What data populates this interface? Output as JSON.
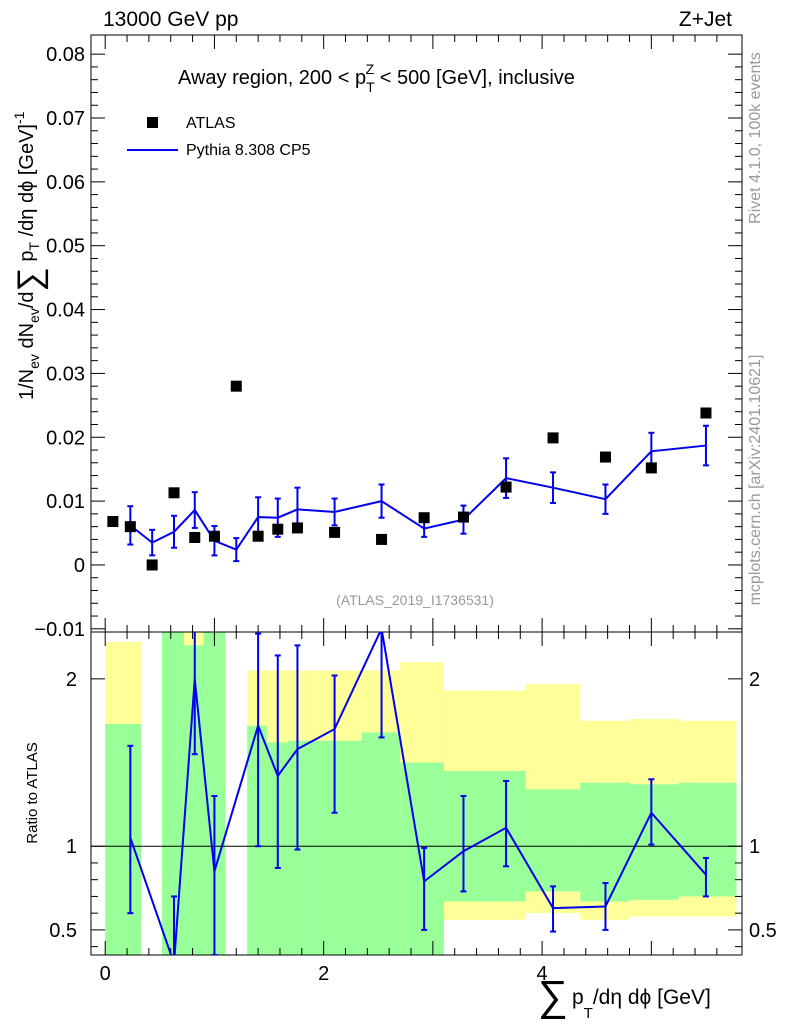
{
  "header": {
    "left": "13000 GeV pp",
    "right": "Z+Jet"
  },
  "side": {
    "rivet": "Rivet 4.1.0,  100k events",
    "mcplots": "mcplots.cern.ch [arXiv:2401.10621]"
  },
  "watermark": "(ATLAS_2019_I1736531)",
  "chart_data": {
    "type": "line",
    "title": "Away region, 200 < p_T^Z < 500 [GeV], inclusive",
    "title_parts": {
      "pre": "Away region, 200 < p",
      "sub": "T",
      "sup": "Z",
      "post": " < 500 [GeV], inclusive"
    },
    "xlabel": "∑ p_T/dη dϕ [GeV]",
    "xlabel_parts": {
      "sigma": "∑",
      "p": "p",
      "sub": "T",
      "rest": "/dη dϕ [GeV]"
    },
    "ylabel": "1/N_ev dN_ev/d∑ p_T/dη dϕ [GeV]^-1",
    "ylabel_parts": {
      "a": "1/N",
      "a_sub": "ev",
      "b": " dN",
      "b_sub": "ev",
      "c": "/d",
      "sigma": "∑",
      "d": " p",
      "d_sub": "T",
      "e": " /dη dϕ  [GeV]",
      "sup": "-1"
    },
    "xlim": [
      -0.13,
      5.83
    ],
    "ylim": [
      -0.0105,
      0.083
    ],
    "x_ticks": [
      0,
      2,
      4
    ],
    "x_tick_labels": [
      "0",
      "2",
      "4"
    ],
    "y_ticks": [
      -0.01,
      0,
      0.01,
      0.02,
      0.03,
      0.04,
      0.05,
      0.06,
      0.07,
      0.08
    ],
    "y_tick_labels": [
      "−0.01",
      "0",
      "0.01",
      "0.02",
      "0.03",
      "0.04",
      "0.05",
      "0.06",
      "0.07",
      "0.08"
    ],
    "legend": {
      "position": "top-left",
      "entries": [
        "ATLAS",
        "Pythia 8.308 CP5"
      ]
    },
    "series": [
      {
        "name": "ATLAS",
        "style": "markers",
        "color": "#000000",
        "x": [
          0.07,
          0.23,
          0.43,
          0.63,
          0.82,
          1.0,
          1.2,
          1.4,
          1.58,
          1.76,
          2.1,
          2.53,
          2.92,
          3.28,
          3.67,
          4.1,
          4.58,
          5.0,
          5.5
        ],
        "y": [
          0.0068,
          0.006,
          0.0,
          0.0113,
          0.0043,
          0.0045,
          0.028,
          0.0045,
          0.0056,
          0.0058,
          0.0051,
          0.004,
          0.0074,
          0.0075,
          0.0122,
          0.0199,
          0.0169,
          0.0152,
          0.0238
        ]
      },
      {
        "name": "Pythia 8.308 CP5",
        "style": "line",
        "color": "#0000ee",
        "x": [
          0.23,
          0.43,
          0.63,
          0.82,
          1.0,
          1.2,
          1.4,
          1.58,
          1.76,
          2.1,
          2.53,
          2.92,
          3.28,
          3.67,
          4.1,
          4.58,
          5.0,
          5.5
        ],
        "y": [
          0.0062,
          0.0035,
          0.0052,
          0.0086,
          0.0038,
          0.0024,
          0.0075,
          0.0074,
          0.0087,
          0.0083,
          0.01,
          0.0057,
          0.0071,
          0.0136,
          0.0121,
          0.0103,
          0.0178,
          0.0187
        ],
        "err": [
          0.003,
          0.002,
          0.0025,
          0.0028,
          0.0023,
          0.0018,
          0.0031,
          0.003,
          0.0034,
          0.0021,
          0.0026,
          0.0013,
          0.0022,
          0.0031,
          0.0024,
          0.0023,
          0.0029,
          0.0031
        ]
      }
    ],
    "ratio": {
      "ylabel": "Ratio to ATLAS",
      "ylim": [
        0.35,
        2.28
      ],
      "y_ticks": [
        0.5,
        1,
        2
      ],
      "y_tick_labels": [
        "0.5",
        "1",
        "2"
      ],
      "reference": 1,
      "bands": {
        "edges": [
          0,
          0.33,
          0.52,
          0.72,
          0.9,
          1.1,
          1.3,
          1.48,
          1.67,
          1.85,
          2.35,
          2.7,
          3.1,
          3.45,
          3.85,
          4.35,
          4.8,
          5.25,
          5.78
        ],
        "green_lo": [
          0.35,
          null,
          0.35,
          0.35,
          0.35,
          null,
          0.35,
          0.35,
          0.35,
          0.35,
          0.35,
          0.35,
          0.67,
          0.67,
          0.73,
          0.67,
          0.68,
          0.7
        ],
        "green_hi": [
          1.73,
          null,
          2.28,
          2.2,
          2.28,
          null,
          1.72,
          1.62,
          1.63,
          1.63,
          1.68,
          1.5,
          1.45,
          1.45,
          1.34,
          1.38,
          1.37,
          1.38
        ],
        "yellow_lo": [
          0.35,
          null,
          0.35,
          0.35,
          0.35,
          null,
          0.35,
          0.35,
          0.35,
          0.35,
          0.48,
          0.35,
          0.56,
          0.56,
          0.6,
          0.56,
          0.58,
          0.58
        ],
        "yellow_hi": [
          2.22,
          null,
          2.28,
          2.28,
          2.28,
          null,
          2.05,
          2.05,
          2.05,
          2.05,
          2.05,
          2.1,
          1.93,
          1.93,
          1.97,
          1.75,
          1.76,
          1.75
        ]
      },
      "series": {
        "name": "Pythia 8.308 CP5 / ATLAS",
        "x": [
          0.23,
          0.63,
          0.82,
          1.0,
          1.4,
          1.58,
          1.76,
          2.1,
          2.53,
          2.92,
          3.28,
          3.67,
          4.1,
          4.58,
          5.0,
          5.5
        ],
        "y": [
          1.05,
          0.3,
          2.0,
          0.85,
          1.72,
          1.42,
          1.58,
          1.7,
          2.3,
          0.79,
          0.97,
          1.11,
          0.63,
          0.64,
          1.2,
          0.83
        ],
        "err_lo": [
          0.45,
          0.4,
          0.45,
          0.5,
          0.72,
          0.55,
          0.6,
          0.5,
          0.65,
          0.29,
          0.24,
          0.23,
          0.14,
          0.14,
          0.19,
          0.13
        ],
        "err_hi": [
          0.55,
          0.4,
          0.5,
          0.45,
          0.55,
          0.72,
          0.62,
          0.32,
          0.15,
          0.2,
          0.33,
          0.28,
          0.13,
          0.14,
          0.2,
          0.1
        ]
      }
    }
  }
}
